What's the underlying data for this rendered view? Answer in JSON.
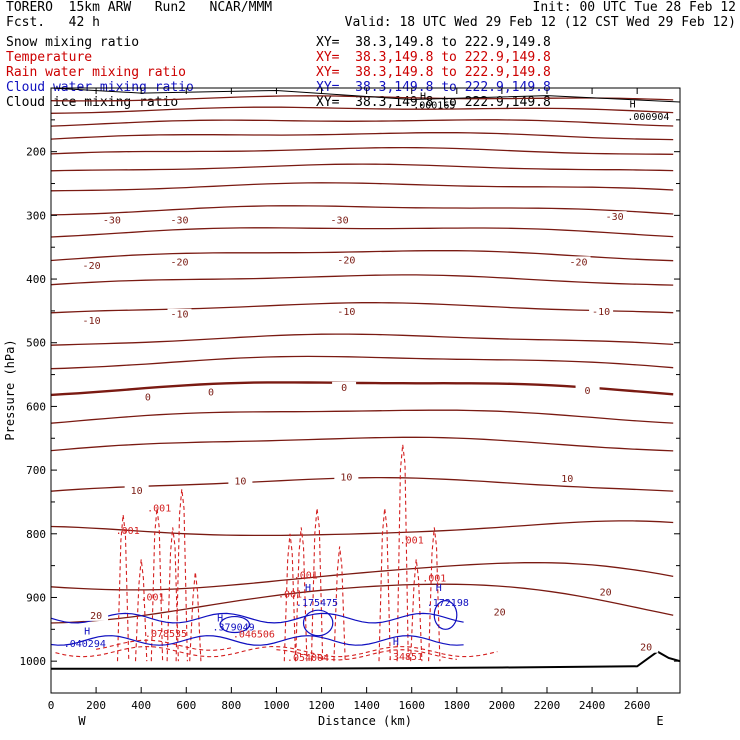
{
  "header": {
    "left_line1": "TORERO  15km ARW   Run2   NCAR/MMM",
    "left_line2": "Fcst.   42 h",
    "right_line1": "Init: 00 UTC Tue 28 Feb 12",
    "right_line2": "Valid: 18 UTC Wed 29 Feb 12 (12 CST Wed 29 Feb 12)"
  },
  "fields": [
    {
      "name": "Snow mixing ratio",
      "color": "#000000",
      "xy": "XY=  38.3,149.8 to 222.9,149.8",
      "xy_color": "#000000"
    },
    {
      "name": "Temperature",
      "color": "#cc0000",
      "xy": "XY=  38.3,149.8 to 222.9,149.8",
      "xy_color": "#cc0000"
    },
    {
      "name": "Rain water mixing ratio",
      "color": "#cc0000",
      "xy": "XY=  38.3,149.8 to 222.9,149.8",
      "xy_color": "#cc0000"
    },
    {
      "name": "Cloud water mixing ratio",
      "color": "#1010c0",
      "xy": "XY=  38.3,149.8 to 222.9,149.8",
      "xy_color": "#1010c0"
    },
    {
      "name": "Cloud ice mixing ratio",
      "color": "#000000",
      "xy": "XY=  38.3,149.8 to 222.9,149.8",
      "xy_color": "#000000"
    }
  ],
  "chart_data": {
    "type": "line",
    "subtype": "vertical cross-section contour plot",
    "xlabel": "Distance (km)",
    "ylabel": "Pressure (hPa)",
    "x_ticks": [
      0,
      200,
      400,
      600,
      800,
      1000,
      1200,
      1400,
      1600,
      1800,
      2000,
      2200,
      2400,
      2600
    ],
    "y_ticks": [
      200,
      300,
      400,
      500,
      600,
      700,
      800,
      900,
      1000
    ],
    "xlim": [
      0,
      2790
    ],
    "ylim": [
      1050,
      100
    ],
    "x_end_labels": {
      "left": "W",
      "right": "E"
    },
    "temperature_contours": [
      {
        "label": "-30",
        "pressure_at": [
          [
            0,
            298
          ],
          [
            1000,
            295
          ],
          [
            2000,
            292
          ],
          [
            2700,
            288
          ]
        ],
        "label_positions": [
          [
            270,
            311
          ],
          [
            570,
            311
          ],
          [
            1280,
            311
          ],
          [
            2500,
            306
          ]
        ]
      },
      {
        "label": "-20",
        "pressure_at": [
          [
            0,
            370
          ],
          [
            1000,
            365
          ],
          [
            2000,
            367
          ],
          [
            2700,
            365
          ]
        ],
        "label_positions": [
          [
            180,
            383
          ],
          [
            570,
            377
          ],
          [
            1310,
            374
          ],
          [
            2340,
            377
          ]
        ]
      },
      {
        "label": "-10",
        "pressure_at": [
          [
            0,
            455
          ],
          [
            1000,
            445
          ],
          [
            2000,
            447
          ],
          [
            2700,
            448
          ]
        ],
        "label_positions": [
          [
            180,
            469
          ],
          [
            570,
            459
          ],
          [
            1310,
            455
          ],
          [
            2440,
            455
          ]
        ]
      },
      {
        "label": "0",
        "pressure_at": [
          [
            0,
            580
          ],
          [
            1000,
            568
          ],
          [
            1300,
            560
          ],
          [
            2000,
            565
          ],
          [
            2700,
            570
          ]
        ],
        "label_positions": [
          [
            430,
            589
          ],
          [
            710,
            581
          ],
          [
            1300,
            574
          ],
          [
            2380,
            579
          ]
        ]
      },
      {
        "label": "10",
        "pressure_at": [
          [
            0,
            735
          ],
          [
            700,
            720
          ],
          [
            1300,
            708
          ],
          [
            2000,
            712
          ],
          [
            2700,
            722
          ]
        ],
        "label_positions": [
          [
            380,
            736
          ],
          [
            840,
            721
          ],
          [
            1310,
            715
          ],
          [
            2290,
            717
          ]
        ]
      },
      {
        "label": "20",
        "pressure_at": [
          [
            0,
            920
          ],
          [
            1000,
            910
          ],
          [
            2000,
            930
          ],
          [
            2700,
            890
          ]
        ],
        "label_positions": [
          [
            200,
            932
          ],
          [
            1990,
            927
          ],
          [
            2460,
            895
          ],
          [
            2640,
            982
          ]
        ]
      }
    ],
    "rain_water_labels": [
      {
        "value": ".001",
        "x": 340,
        "p": 800
      },
      {
        "value": ".001",
        "x": 480,
        "p": 765
      },
      {
        "value": ".001",
        "x": 450,
        "p": 905
      },
      {
        "value": ".001",
        "x": 1130,
        "p": 870
      },
      {
        "value": ".001",
        "x": 1060,
        "p": 900
      },
      {
        "value": ".001",
        "x": 1600,
        "p": 815
      },
      {
        "value": ".001",
        "x": 1700,
        "p": 875
      },
      {
        "value": ".078535",
        "x": 510,
        "p": 962
      },
      {
        "value": ".046506",
        "x": 900,
        "p": 963
      },
      {
        "value": ".054004",
        "x": 1140,
        "p": 1000
      },
      {
        "value": ".34851",
        "x": 1570,
        "p": 998
      }
    ],
    "cloud_water_labels": [
      {
        "value": "H",
        "x": 160,
        "p": 958
      },
      {
        "value": ".040294",
        "x": 150,
        "p": 978
      },
      {
        "value": "H",
        "x": 750,
        "p": 938
      },
      {
        "value": ".379049",
        "x": 810,
        "p": 952
      },
      {
        "value": "H",
        "x": 1140,
        "p": 890
      },
      {
        "value": ".175475",
        "x": 1180,
        "p": 913
      },
      {
        "value": "H",
        "x": 1720,
        "p": 890
      },
      {
        "value": ".172198",
        "x": 1760,
        "p": 913
      },
      {
        "value": "H",
        "x": 1530,
        "p": 975
      }
    ],
    "cloud_ice_labels": [
      {
        "value": "H",
        "x": 2580,
        "p": 131
      },
      {
        "value": ".000904",
        "x": 2650,
        "p": 150
      },
      {
        "value": "H",
        "x": 1650,
        "p": 118
      },
      {
        "value": ".000165",
        "x": 1700,
        "p": 132
      }
    ]
  }
}
